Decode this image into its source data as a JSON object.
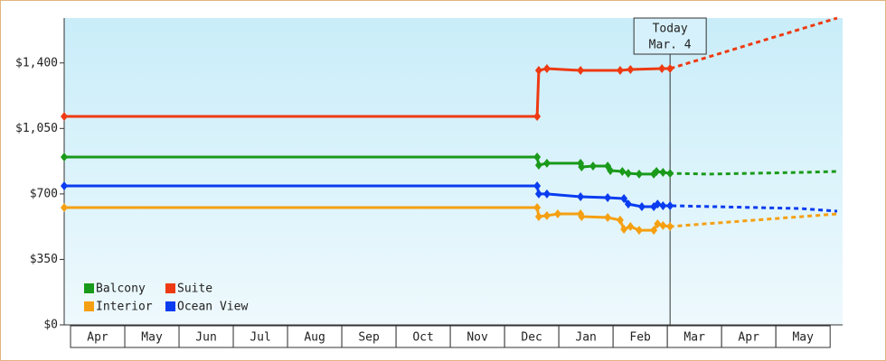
{
  "chart_data": {
    "type": "line",
    "xlim": [
      -0.117,
      14.23
    ],
    "xticks": [
      {
        "value": 0.5,
        "label": "Apr"
      },
      {
        "value": 1.5,
        "label": "May"
      },
      {
        "value": 2.5,
        "label": "Jun"
      },
      {
        "value": 3.5,
        "label": "Jul"
      },
      {
        "value": 4.5,
        "label": "Aug"
      },
      {
        "value": 5.5,
        "label": "Sep"
      },
      {
        "value": 6.5,
        "label": "Oct"
      },
      {
        "value": 7.5,
        "label": "Nov"
      },
      {
        "value": 8.5,
        "label": "Dec"
      },
      {
        "value": 9.5,
        "label": "Jan"
      },
      {
        "value": 10.5,
        "label": "Feb"
      },
      {
        "value": 11.5,
        "label": "Mar"
      },
      {
        "value": 12.5,
        "label": "Apr"
      },
      {
        "value": 13.5,
        "label": "May"
      }
    ],
    "ylim": [
      0,
      1640
    ],
    "yticks": [
      {
        "value": 0,
        "label": "$0"
      },
      {
        "value": 350,
        "label": "$350"
      },
      {
        "value": 700,
        "label": "$700"
      },
      {
        "value": 1050,
        "label": "$1,050"
      },
      {
        "value": 1400,
        "label": "$1,400"
      }
    ],
    "today": {
      "x": 11.05,
      "lines": [
        "Today",
        "Mar. 4"
      ]
    },
    "series": [
      {
        "name": "Balcony",
        "color": "#1a9a1a",
        "x": [
          -0.117,
          8.6,
          8.63,
          8.78,
          9.4,
          9.42,
          9.63,
          9.9,
          9.95,
          10.17,
          10.28,
          10.48,
          10.75,
          10.8,
          10.92,
          11.05,
          11.78,
          13.45,
          14.13
        ],
        "values": [
          897,
          897,
          854,
          864,
          864,
          844,
          849,
          849,
          825,
          820,
          810,
          806,
          806,
          820,
          815,
          810,
          806,
          815,
          820
        ]
      },
      {
        "name": "Suite",
        "color": "#ee3a12",
        "x": [
          -0.117,
          8.6,
          8.63,
          8.78,
          9.4,
          10.13,
          10.32,
          10.9,
          11.05,
          14.13
        ],
        "values": [
          1114,
          1114,
          1360,
          1370,
          1360,
          1360,
          1365,
          1370,
          1370,
          1640
        ]
      },
      {
        "name": "Interior",
        "color": "#f5a012",
        "x": [
          -0.117,
          8.6,
          8.63,
          8.78,
          8.98,
          9.4,
          9.42,
          9.9,
          10.13,
          10.2,
          10.32,
          10.48,
          10.75,
          10.82,
          10.92,
          11.05,
          14.13
        ],
        "values": [
          627,
          627,
          579,
          584,
          593,
          593,
          579,
          574,
          560,
          511,
          526,
          506,
          506,
          540,
          531,
          526,
          593
        ]
      },
      {
        "name": "Ocean View",
        "color": "#0a3cf0",
        "x": [
          -0.117,
          8.6,
          8.63,
          8.78,
          9.4,
          9.9,
          10.2,
          10.28,
          10.53,
          10.75,
          10.82,
          10.92,
          11.05,
          13.45,
          14.13
        ],
        "values": [
          743,
          743,
          700,
          700,
          685,
          680,
          675,
          646,
          632,
          632,
          646,
          637,
          637,
          622,
          608
        ]
      }
    ]
  }
}
